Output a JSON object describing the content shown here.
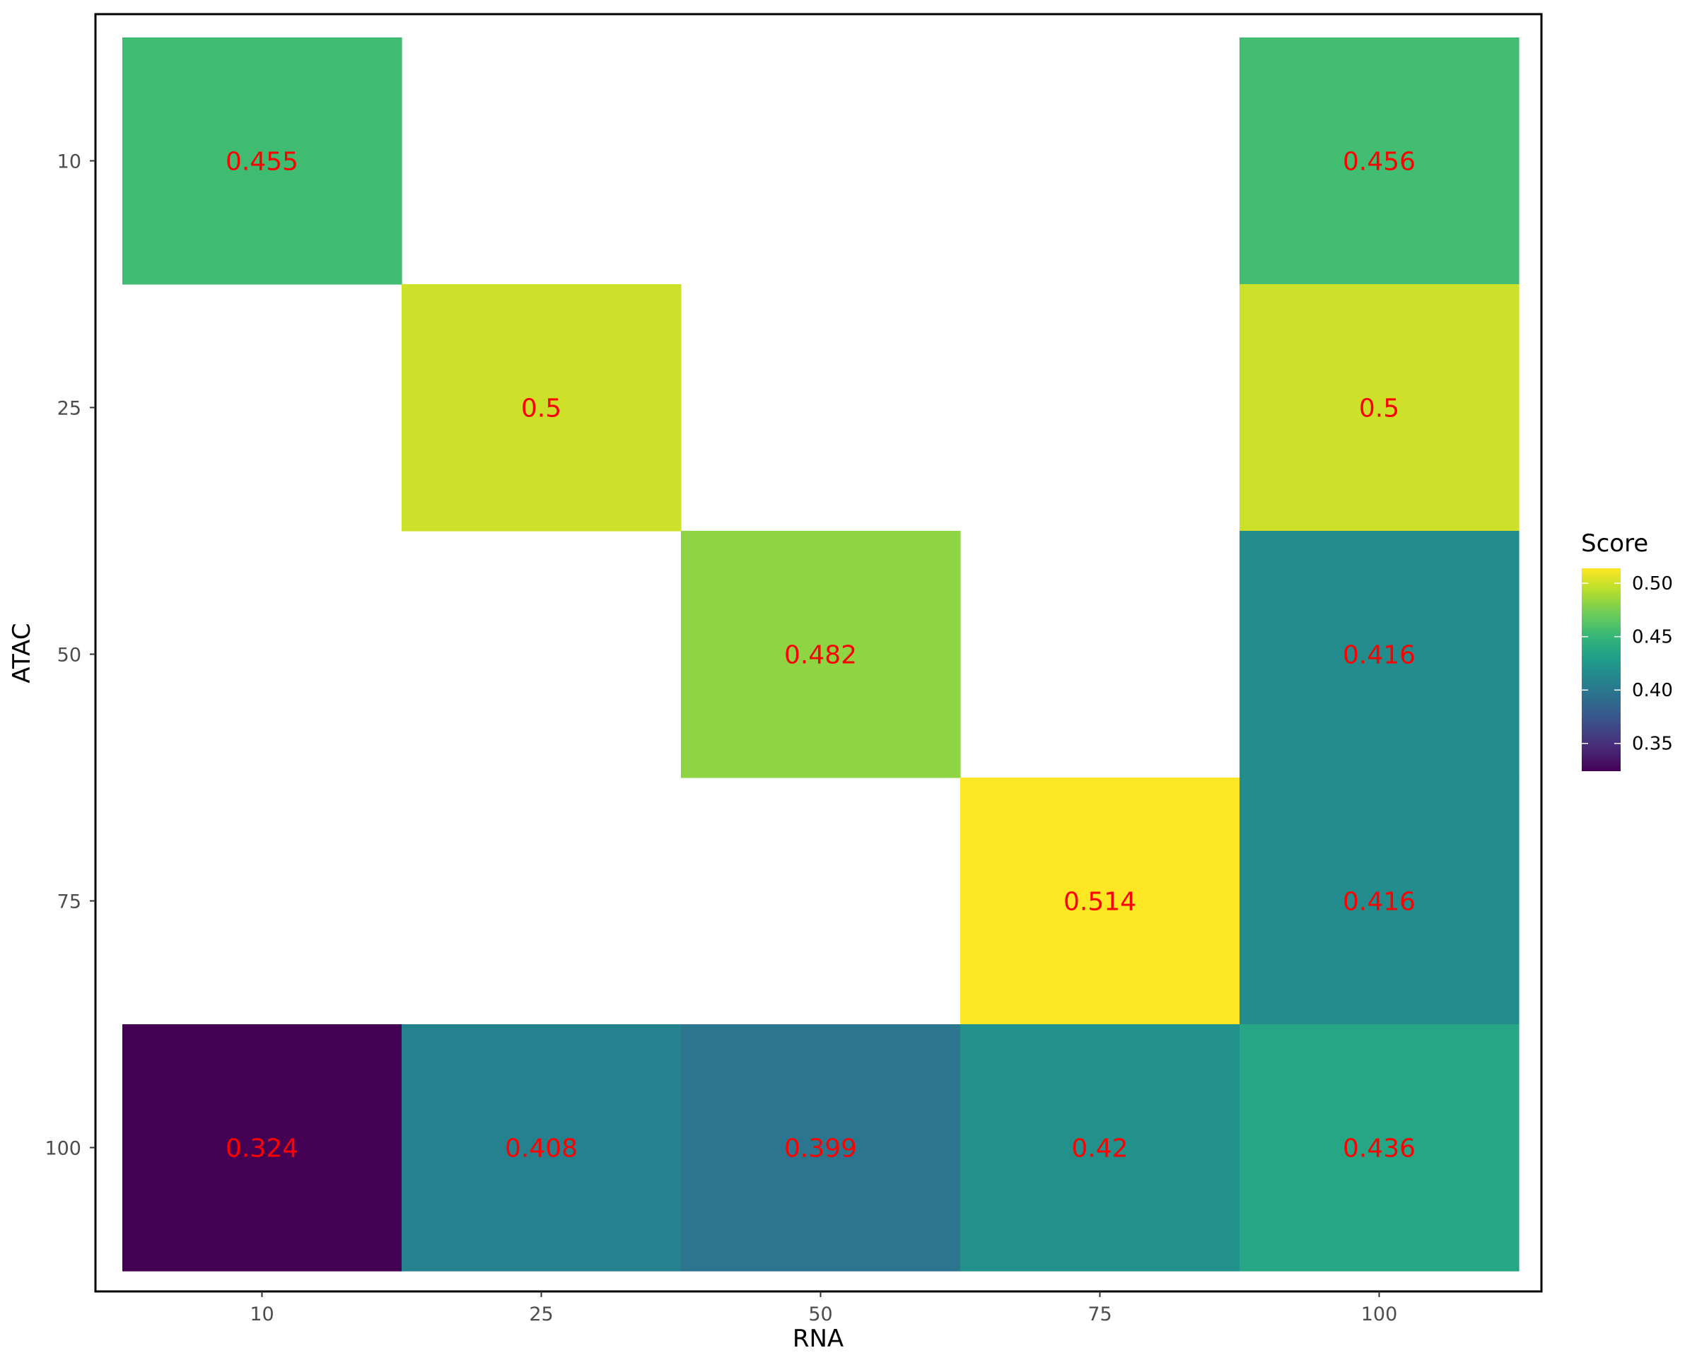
{
  "chart_data": {
    "type": "heatmap",
    "xlabel": "RNA",
    "ylabel": "ATAC",
    "x_categories": [
      "10",
      "25",
      "50",
      "75",
      "100"
    ],
    "y_categories": [
      "10",
      "25",
      "50",
      "75",
      "100"
    ],
    "cells": [
      {
        "x": "10",
        "y": "10",
        "value": 0.455,
        "label": "0.455"
      },
      {
        "x": "100",
        "y": "10",
        "value": 0.456,
        "label": "0.456"
      },
      {
        "x": "25",
        "y": "25",
        "value": 0.5,
        "label": "0.5"
      },
      {
        "x": "100",
        "y": "25",
        "value": 0.5,
        "label": "0.5"
      },
      {
        "x": "50",
        "y": "50",
        "value": 0.482,
        "label": "0.482"
      },
      {
        "x": "100",
        "y": "50",
        "value": 0.416,
        "label": "0.416"
      },
      {
        "x": "75",
        "y": "75",
        "value": 0.514,
        "label": "0.514"
      },
      {
        "x": "100",
        "y": "75",
        "value": 0.416,
        "label": "0.416"
      },
      {
        "x": "10",
        "y": "100",
        "value": 0.324,
        "label": "0.324"
      },
      {
        "x": "25",
        "y": "100",
        "value": 0.408,
        "label": "0.408"
      },
      {
        "x": "50",
        "y": "100",
        "value": 0.399,
        "label": "0.399"
      },
      {
        "x": "75",
        "y": "100",
        "value": 0.42,
        "label": "0.42"
      },
      {
        "x": "100",
        "y": "100",
        "value": 0.436,
        "label": "0.436"
      }
    ],
    "legend": {
      "title": "Score",
      "placement": "right",
      "range": [
        0.324,
        0.514
      ],
      "ticks": [
        0.35,
        0.4,
        0.45,
        0.5
      ],
      "tick_labels": [
        "0.35",
        "0.40",
        "0.45",
        "0.50"
      ]
    },
    "colormap": "viridis",
    "label_color": "#ff0000",
    "panel_border": true,
    "grid": false
  }
}
